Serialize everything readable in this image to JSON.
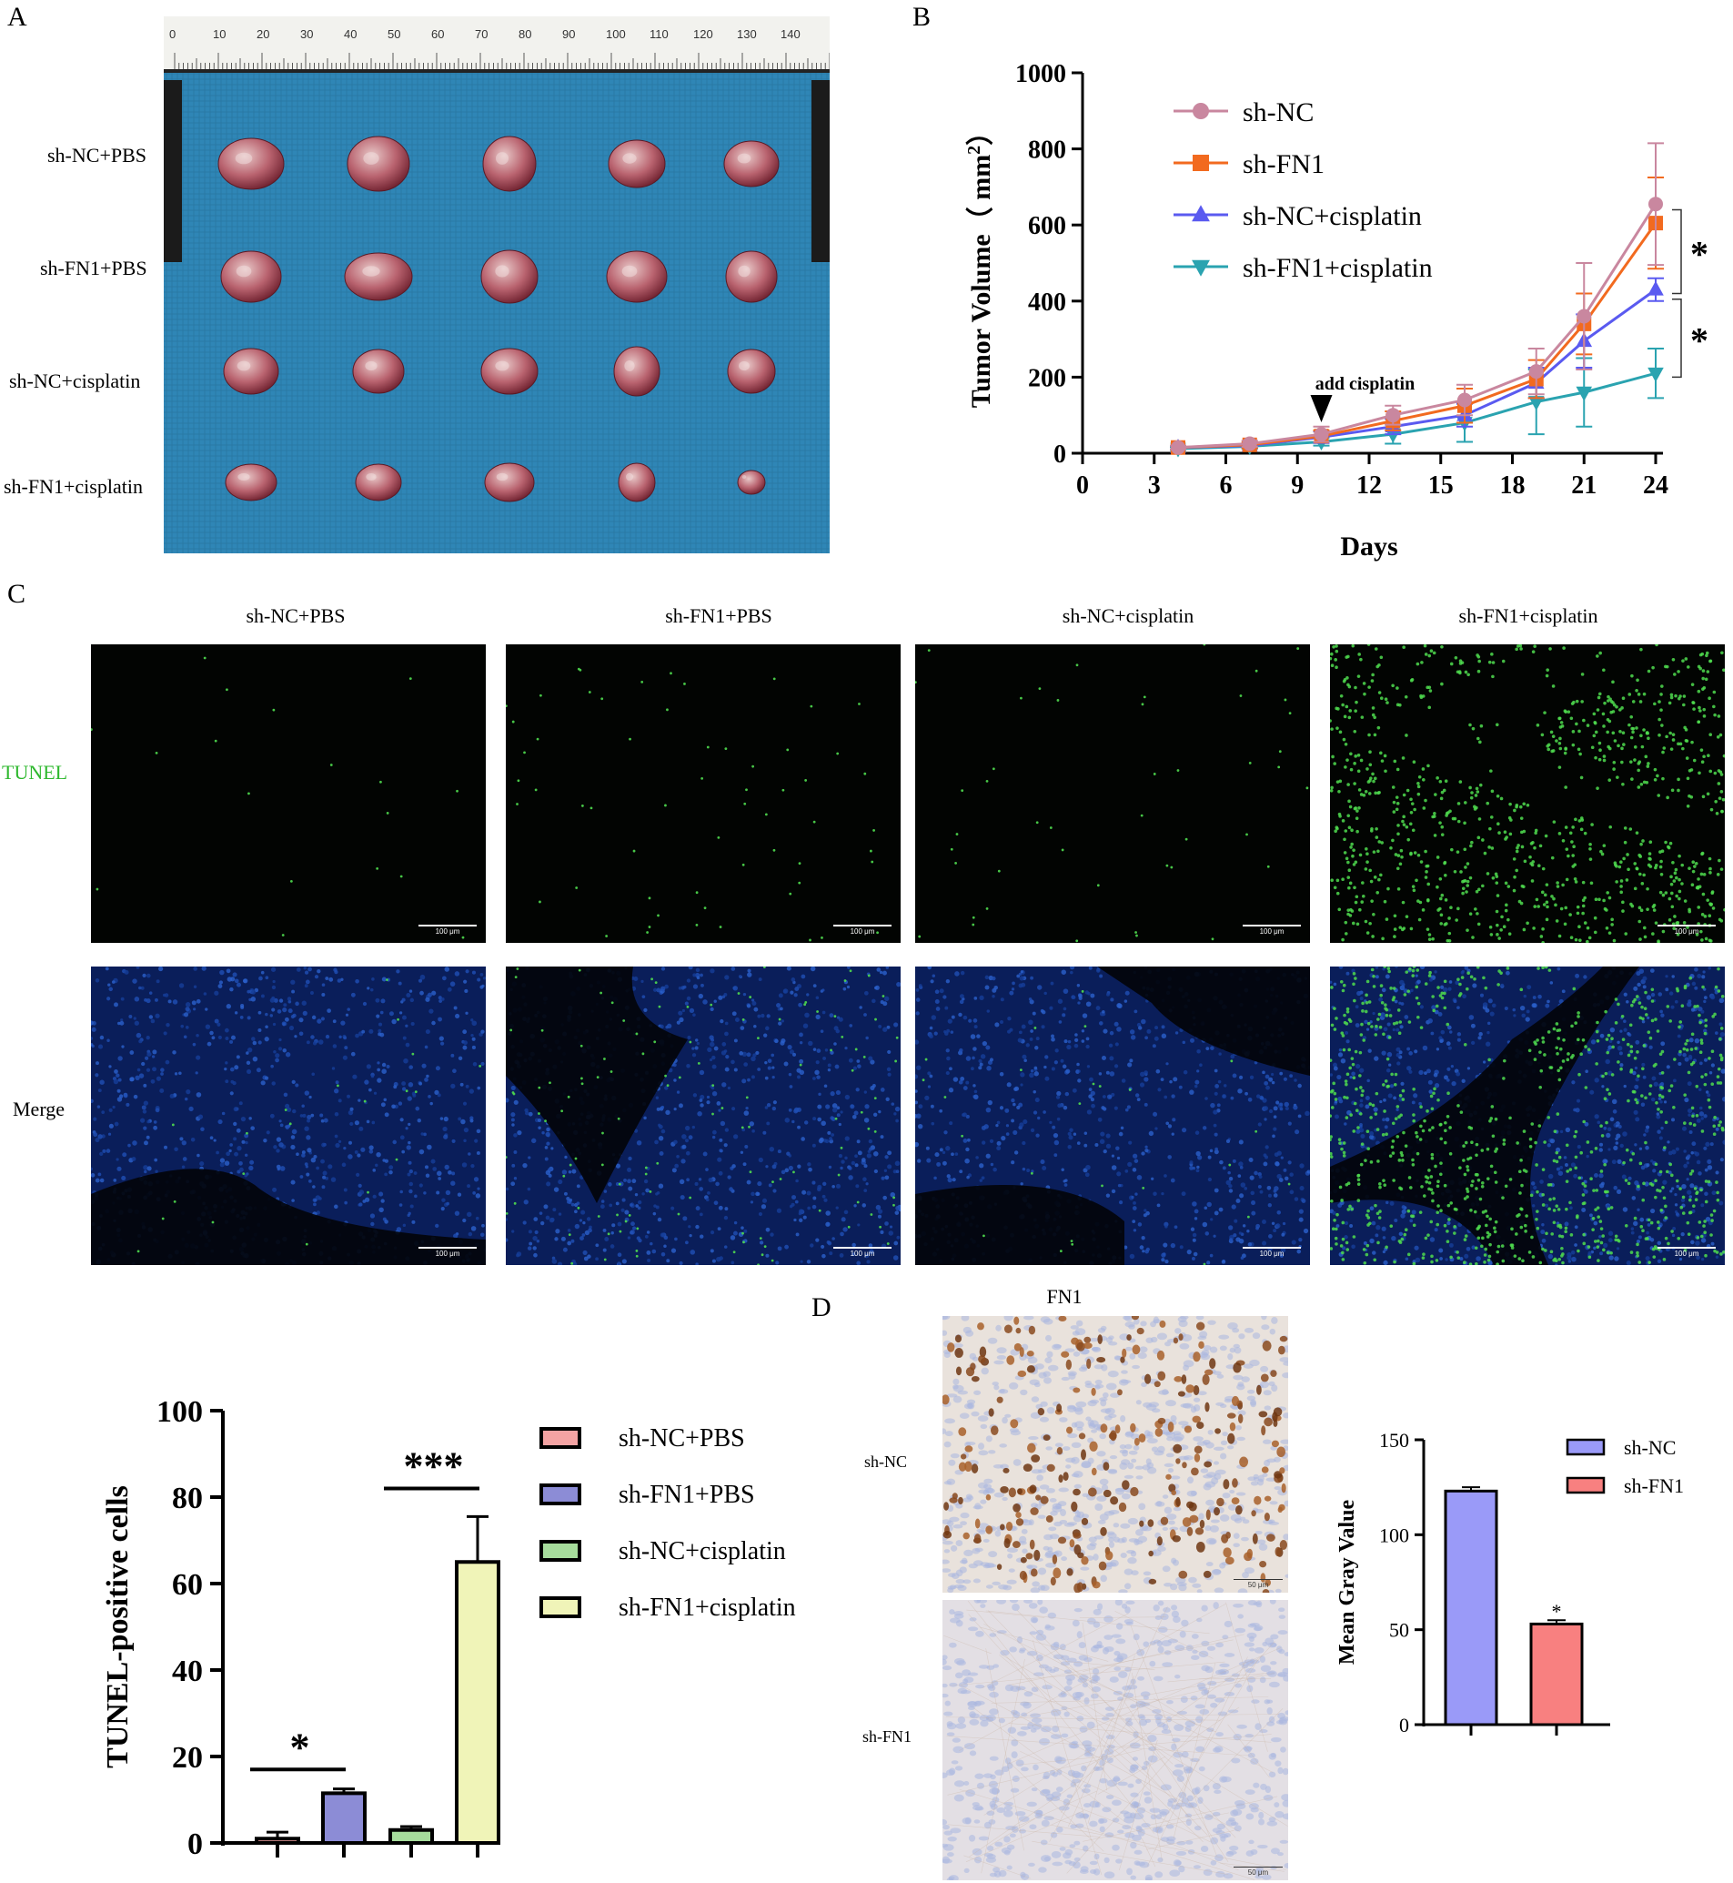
{
  "panels": {
    "a": "A",
    "b": "B",
    "c": "C",
    "d": "D"
  },
  "colors": {
    "shNC": "#c9879f",
    "shFN1": "#f26a1f",
    "shNCcis": "#5a5af0",
    "shFN1cis": "#2aa3b0",
    "bar_shNC_PBS": "#f4a3a3",
    "bar_shFN1_PBS": "#8c8cd6",
    "bar_shNC_cis": "#a6dc9c",
    "bar_shFN1_cis": "#f0f4b8",
    "d_shNC": "#9a9af8",
    "d_shFN1": "#f88080",
    "tunel_label": "#2eb82e"
  },
  "photo": {
    "row_labels": [
      "sh-NC+PBS",
      "sh-FN1+PBS",
      "sh-NC+cisplatin",
      "sh-FN1+cisplatin"
    ],
    "ruler_cm_labels": [
      "0",
      "10",
      "20",
      "30",
      "40",
      "50",
      "60",
      "70",
      "80",
      "90",
      "100",
      "110",
      "120",
      "130",
      "140"
    ]
  },
  "tunel": {
    "columns": [
      "sh-NC+PBS",
      "sh-FN1+PBS",
      "sh-NC+cisplatin",
      "sh-FN1+cisplatin"
    ],
    "rows": [
      "TUNEL",
      "Merge"
    ],
    "scale_label": "100 μm"
  },
  "ihc": {
    "title": "FN1",
    "rows": [
      "sh-NC",
      "sh-FN1"
    ],
    "scale_label": "50 μm"
  },
  "chart_data": [
    {
      "id": "B",
      "type": "line",
      "xlabel": "Days",
      "ylabel": "Tumor Volume",
      "ylabel_unit": "mm",
      "ylabel_open": "（",
      "ylabel_close": "）",
      "ylim": [
        0,
        1000
      ],
      "xlim": [
        0,
        24
      ],
      "xticks": [
        0,
        3,
        6,
        9,
        12,
        15,
        18,
        21,
        24
      ],
      "yticks": [
        0,
        200,
        400,
        600,
        800,
        1000
      ],
      "x": [
        4,
        7,
        10,
        13,
        16,
        19,
        21,
        24
      ],
      "annotation": "add cisplatin",
      "annotation_x": 10,
      "significance": [
        "*",
        "*"
      ],
      "series": [
        {
          "name": "sh-NC",
          "marker": "circle",
          "values": [
            15,
            25,
            50,
            100,
            140,
            215,
            360,
            655
          ],
          "err": [
            5,
            8,
            20,
            25,
            40,
            60,
            140,
            160
          ]
        },
        {
          "name": "sh-FN1",
          "marker": "square",
          "values": [
            15,
            22,
            45,
            85,
            125,
            195,
            340,
            605
          ],
          "err": [
            5,
            8,
            15,
            25,
            45,
            50,
            80,
            120
          ]
        },
        {
          "name": "sh-NC+cisplatin",
          "marker": "triangle-up",
          "values": [
            15,
            20,
            42,
            70,
            100,
            185,
            295,
            430
          ],
          "err": [
            5,
            6,
            15,
            20,
            30,
            40,
            70,
            30
          ]
        },
        {
          "name": "sh-FN1+cisplatin",
          "marker": "triangle-down",
          "values": [
            12,
            18,
            30,
            50,
            80,
            135,
            160,
            210
          ],
          "err": [
            4,
            6,
            10,
            25,
            50,
            85,
            90,
            65
          ]
        }
      ]
    },
    {
      "id": "C-quant",
      "type": "bar",
      "ylabel": "TUNEL-positive cells",
      "ylim": [
        0,
        100
      ],
      "yticks": [
        0,
        20,
        40,
        60,
        80,
        100
      ],
      "categories": [
        "sh-NC+PBS",
        "sh-FN1+PBS",
        "sh-NC+cisplatin",
        "sh-FN1+cisplatin"
      ],
      "values": [
        1,
        11.5,
        3,
        65
      ],
      "err": [
        1.5,
        1,
        0.8,
        10.5
      ],
      "significance": [
        {
          "label": "*",
          "between": [
            0,
            1
          ]
        },
        {
          "label": "***",
          "between": [
            2,
            3
          ]
        }
      ]
    },
    {
      "id": "D-quant",
      "type": "bar",
      "ylabel": "Mean Gray Value",
      "ylim": [
        0,
        150
      ],
      "yticks": [
        0,
        50,
        100,
        150
      ],
      "categories": [
        "sh-NC",
        "sh-FN1"
      ],
      "values": [
        123,
        53
      ],
      "err": [
        2,
        2
      ],
      "significance": [
        "*"
      ]
    }
  ]
}
